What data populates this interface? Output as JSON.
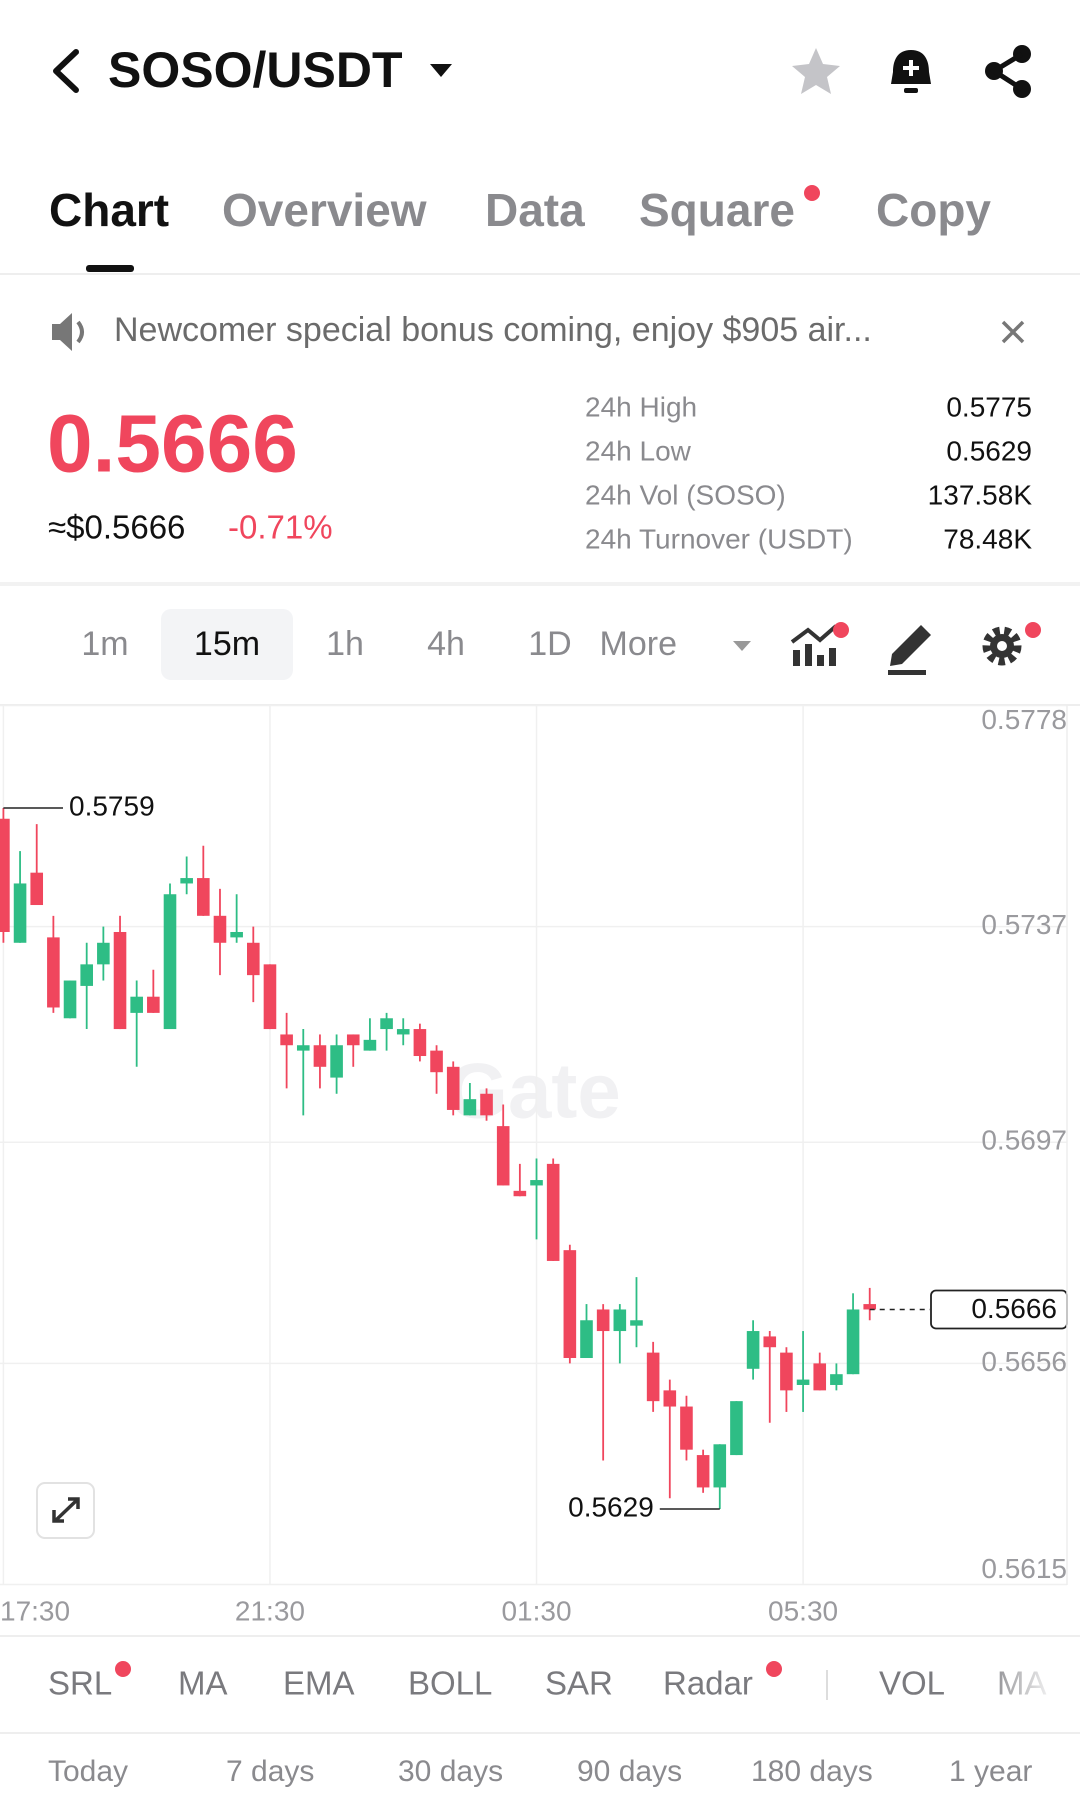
{
  "header": {
    "title": "SOSO/USDT"
  },
  "tabs": [
    "Chart",
    "Overview",
    "Data",
    "Square",
    "Copy"
  ],
  "notice": "Newcomer special bonus coming, enjoy $905 air...",
  "price": {
    "last": "0.5666",
    "usd": "≈$0.5666",
    "change": "-0.71%"
  },
  "stats": [
    {
      "label": "24h High",
      "value": "0.5775"
    },
    {
      "label": "24h Low",
      "value": "0.5629"
    },
    {
      "label": "24h Vol (SOSO)",
      "value": "137.58K"
    },
    {
      "label": "24h Turnover (USDT)",
      "value": "78.48K"
    }
  ],
  "intervals": [
    "1m",
    "15m",
    "1h",
    "4h",
    "1D",
    "More"
  ],
  "indicators": [
    "SRL",
    "MA",
    "EMA",
    "BOLL",
    "SAR",
    "Radar",
    "VOL",
    "MA"
  ],
  "periods": [
    "Today",
    "7 days",
    "30 days",
    "90 days",
    "180 days",
    "1 year"
  ],
  "chart_data": {
    "type": "candlestick",
    "watermark": "Gate",
    "categories": [
      "17:30",
      null,
      null,
      null,
      null,
      null,
      null,
      null,
      null,
      null,
      null,
      null,
      null,
      null,
      null,
      null,
      "21:30",
      null,
      null,
      null,
      null,
      null,
      null,
      null,
      null,
      null,
      null,
      null,
      null,
      null,
      null,
      null,
      "01:30",
      null,
      null,
      null,
      null,
      null,
      null,
      null,
      null,
      null,
      null,
      null,
      null,
      null,
      null,
      null,
      "05:30",
      null,
      null,
      null,
      null
    ],
    "open": [
      0.5757,
      0.5734,
      0.5747,
      0.5735,
      0.572,
      0.5726,
      0.573,
      0.5736,
      0.5721,
      0.5724,
      0.5718,
      0.5745,
      0.5746,
      0.5739,
      0.5735,
      0.5734,
      0.573,
      0.5717,
      0.5714,
      0.5715,
      0.5709,
      0.5717,
      0.5714,
      0.5718,
      0.5717,
      0.5718,
      0.5714,
      0.5711,
      0.5702,
      0.5706,
      0.57,
      0.5688,
      0.5689,
      0.5693,
      0.5677,
      0.5657,
      0.5666,
      0.5662,
      0.5663,
      0.5658,
      0.5651,
      0.5648,
      0.5639,
      0.5633,
      0.5639,
      0.5655,
      0.5661,
      0.5658,
      0.5652,
      0.5656,
      0.5652,
      0.5654,
      0.5667
    ],
    "high": [
      0.5759,
      0.5751,
      0.5756,
      0.5739,
      0.5727,
      0.5734,
      0.5737,
      0.5739,
      0.5727,
      0.5729,
      0.5745,
      0.575,
      0.5752,
      0.5744,
      0.5743,
      0.5737,
      0.573,
      0.5721,
      0.5718,
      0.5717,
      0.5717,
      0.5717,
      0.572,
      0.5721,
      0.572,
      0.5719,
      0.5715,
      0.5712,
      0.5708,
      0.5707,
      0.5704,
      0.5693,
      0.5694,
      0.5694,
      0.5678,
      0.5667,
      0.5667,
      0.5667,
      0.5672,
      0.566,
      0.5653,
      0.565,
      0.564,
      0.5641,
      0.5649,
      0.5664,
      0.5662,
      0.5659,
      0.5662,
      0.5658,
      0.5656,
      0.5669,
      0.567
    ],
    "low": [
      0.5734,
      0.5734,
      0.5741,
      0.5721,
      0.572,
      0.5718,
      0.5727,
      0.5718,
      0.5711,
      0.5721,
      0.5718,
      0.5743,
      0.5739,
      0.5728,
      0.5734,
      0.5723,
      0.5718,
      0.5707,
      0.5702,
      0.5707,
      0.5706,
      0.5711,
      0.5714,
      0.5714,
      0.5715,
      0.5712,
      0.5706,
      0.5702,
      0.5702,
      0.5701,
      0.5689,
      0.5687,
      0.5679,
      0.5675,
      0.5656,
      0.5657,
      0.5638,
      0.5656,
      0.5659,
      0.5647,
      0.5631,
      0.5638,
      0.5632,
      0.5629,
      0.5639,
      0.5653,
      0.5645,
      0.5647,
      0.5647,
      0.5651,
      0.5651,
      0.5654,
      0.5664
    ],
    "close": [
      0.5736,
      0.5745,
      0.5741,
      0.5722,
      0.5727,
      0.573,
      0.5734,
      0.5718,
      0.5724,
      0.5721,
      0.5743,
      0.5746,
      0.5739,
      0.5734,
      0.5736,
      0.5728,
      0.5718,
      0.5715,
      0.5715,
      0.5711,
      0.5715,
      0.5715,
      0.5716,
      0.572,
      0.5718,
      0.5713,
      0.571,
      0.5703,
      0.5705,
      0.5702,
      0.5689,
      0.5687,
      0.569,
      0.5675,
      0.5657,
      0.5664,
      0.5662,
      0.5666,
      0.5664,
      0.5649,
      0.5648,
      0.564,
      0.5633,
      0.5641,
      0.5649,
      0.5662,
      0.5659,
      0.5651,
      0.5653,
      0.5651,
      0.5654,
      0.5666,
      0.5666
    ],
    "up_color": "#2ebd85",
    "down_color": "#f0465d",
    "ylim": [
      0.5615,
      0.5778
    ],
    "yticks": [
      0.5778,
      0.5737,
      0.5697,
      0.5656,
      0.5615
    ],
    "grid": true,
    "high_marker": 0.5759,
    "low_marker": 0.5629,
    "last_price": 0.5666
  }
}
